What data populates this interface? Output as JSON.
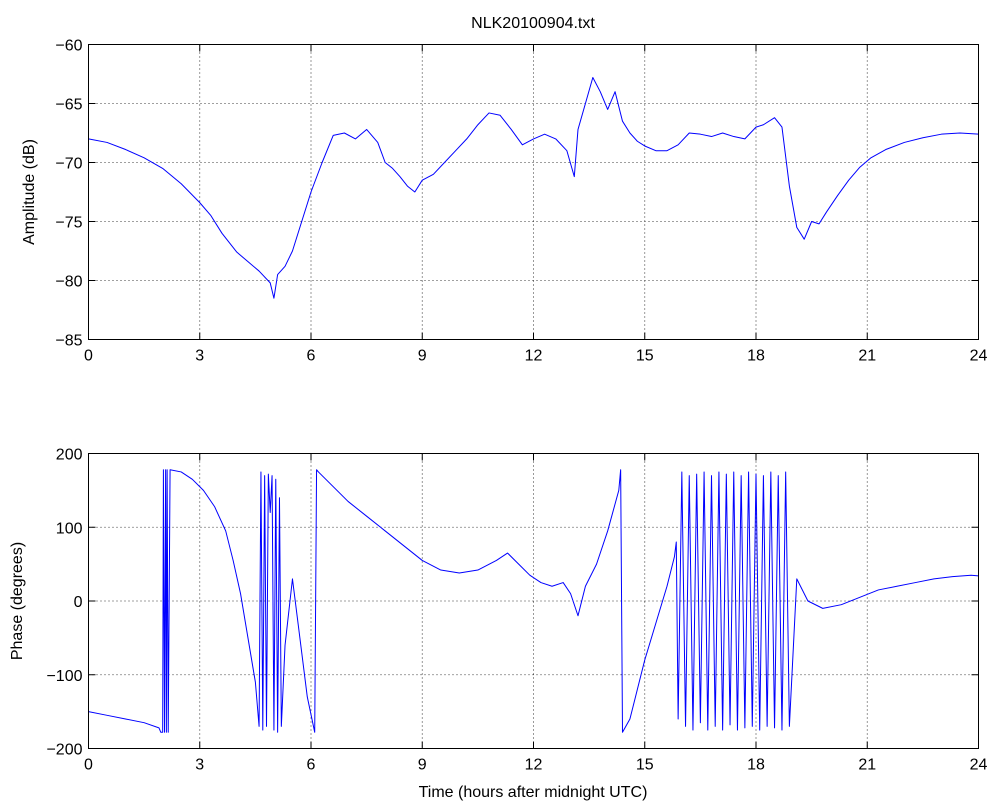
{
  "colors": {
    "trace": "#0000ff",
    "axes": "#000000",
    "background": "#ffffff"
  },
  "chart_data": [
    {
      "type": "line",
      "title": "NLK20100904.txt",
      "xlabel": "",
      "ylabel": "Amplitude (dB)",
      "xlim": [
        0,
        24
      ],
      "ylim": [
        -85,
        -60
      ],
      "xticks": [
        0,
        3,
        6,
        9,
        12,
        15,
        18,
        21,
        24
      ],
      "yticks": [
        -60,
        -65,
        -70,
        -75,
        -80,
        -85
      ],
      "xtick_labels": [
        "0",
        "3",
        "6",
        "9",
        "12",
        "15",
        "18",
        "21",
        "24"
      ],
      "ytick_labels": [
        "−60",
        "−65",
        "−70",
        "−75",
        "−80",
        "−85"
      ],
      "grid": true,
      "series": [
        {
          "x": [
            0,
            0.5,
            1.0,
            1.5,
            2.0,
            2.5,
            3.0,
            3.3,
            3.6,
            4.0,
            4.3,
            4.6,
            4.9,
            5.0,
            5.1,
            5.3,
            5.5,
            5.7,
            6.0,
            6.3,
            6.6,
            6.9,
            7.2,
            7.5,
            7.8,
            8.0,
            8.2,
            8.4,
            8.6,
            8.8,
            9.0,
            9.3,
            9.6,
            9.9,
            10.2,
            10.5,
            10.8,
            11.1,
            11.4,
            11.7,
            12.0,
            12.3,
            12.6,
            12.9,
            13.1,
            13.2,
            13.4,
            13.6,
            13.8,
            14.0,
            14.2,
            14.4,
            14.6,
            14.8,
            15.0,
            15.3,
            15.6,
            15.9,
            16.2,
            16.5,
            16.8,
            17.1,
            17.4,
            17.7,
            18.0,
            18.2,
            18.5,
            18.7,
            18.9,
            19.1,
            19.3,
            19.5,
            19.7,
            19.9,
            20.2,
            20.5,
            20.8,
            21.1,
            21.5,
            22.0,
            22.5,
            23.0,
            23.5,
            24.0
          ],
          "y": [
            -68,
            -68.3,
            -68.9,
            -69.6,
            -70.5,
            -71.8,
            -73.4,
            -74.5,
            -76.0,
            -77.6,
            -78.4,
            -79.2,
            -80.2,
            -81.5,
            -79.5,
            -78.8,
            -77.5,
            -75.5,
            -72.5,
            -70.0,
            -67.7,
            -67.5,
            -68.0,
            -67.2,
            -68.3,
            -70.0,
            -70.5,
            -71.2,
            -72.0,
            -72.5,
            -71.5,
            -71.0,
            -70.0,
            -69.0,
            -68.0,
            -66.8,
            -65.8,
            -66.0,
            -67.2,
            -68.5,
            -68.0,
            -67.6,
            -68.0,
            -69.0,
            -71.2,
            -67.2,
            -65.0,
            -62.8,
            -64.0,
            -65.5,
            -64.0,
            -66.5,
            -67.5,
            -68.2,
            -68.6,
            -69.0,
            -69.0,
            -68.5,
            -67.5,
            -67.6,
            -67.8,
            -67.5,
            -67.8,
            -68.0,
            -67.0,
            -66.8,
            -66.2,
            -67.0,
            -72.0,
            -75.5,
            -76.5,
            -75.0,
            -75.2,
            -74.2,
            -72.8,
            -71.5,
            -70.4,
            -69.6,
            -68.9,
            -68.3,
            -67.9,
            -67.6,
            -67.5,
            -67.6
          ]
        }
      ]
    },
    {
      "type": "line",
      "title": "",
      "xlabel": "Time (hours after midnight UTC)",
      "ylabel": "Phase (degrees)",
      "xlim": [
        0,
        24
      ],
      "ylim": [
        -200,
        200
      ],
      "xticks": [
        0,
        3,
        6,
        9,
        12,
        15,
        18,
        21,
        24
      ],
      "yticks": [
        200,
        100,
        0,
        -100,
        -200
      ],
      "xtick_labels": [
        "0",
        "3",
        "6",
        "9",
        "12",
        "15",
        "18",
        "21",
        "24"
      ],
      "ytick_labels": [
        "200",
        "100",
        "0",
        "−100",
        "−200"
      ],
      "grid": true,
      "series": [
        {
          "x": [
            0,
            0.5,
            1.0,
            1.5,
            1.9,
            1.95,
            2.0,
            2.02,
            2.05,
            2.08,
            2.1,
            2.12,
            2.15,
            2.2,
            2.5,
            2.8,
            3.1,
            3.4,
            3.7,
            3.9,
            4.1,
            4.3,
            4.5,
            4.6,
            4.65,
            4.7,
            4.75,
            4.8,
            4.85,
            4.9,
            4.95,
            5.0,
            5.05,
            5.1,
            5.15,
            5.2,
            5.3,
            5.5,
            5.7,
            5.9,
            6.1,
            6.15,
            6.2,
            6.6,
            7.0,
            7.5,
            8.0,
            8.5,
            9.0,
            9.5,
            10.0,
            10.5,
            11.0,
            11.3,
            11.6,
            11.9,
            12.2,
            12.5,
            12.8,
            13.0,
            13.2,
            13.4,
            13.7,
            14.0,
            14.3,
            14.35,
            14.4,
            14.6,
            14.8,
            15.0,
            15.3,
            15.6,
            15.8,
            15.85,
            15.9,
            16.0,
            16.1,
            16.2,
            16.3,
            16.4,
            16.5,
            16.6,
            16.7,
            16.8,
            16.9,
            17.0,
            17.1,
            17.2,
            17.3,
            17.4,
            17.5,
            17.6,
            17.7,
            17.8,
            17.9,
            18.0,
            18.1,
            18.2,
            18.3,
            18.4,
            18.5,
            18.6,
            18.7,
            18.8,
            18.9,
            19.1,
            19.4,
            19.8,
            20.3,
            20.8,
            21.3,
            21.8,
            22.3,
            22.8,
            23.3,
            23.8,
            24.0
          ],
          "y": [
            -150,
            -155,
            -160,
            -165,
            -172,
            -178,
            -178,
            178,
            -178,
            178,
            -178,
            178,
            -178,
            178,
            175,
            165,
            150,
            128,
            95,
            55,
            10,
            -50,
            -110,
            -170,
            175,
            -175,
            170,
            -170,
            172,
            120,
            170,
            -175,
            165,
            -178,
            140,
            -170,
            -60,
            30,
            -50,
            -130,
            -178,
            178,
            175,
            155,
            135,
            115,
            95,
            75,
            55,
            42,
            38,
            42,
            55,
            65,
            50,
            35,
            25,
            20,
            25,
            10,
            -20,
            20,
            50,
            95,
            150,
            178,
            -178,
            -160,
            -120,
            -80,
            -30,
            20,
            60,
            80,
            -160,
            175,
            -170,
            170,
            -175,
            172,
            -165,
            175,
            -175,
            170,
            -170,
            175,
            -175,
            172,
            -168,
            175,
            -175,
            170,
            -172,
            175,
            -170,
            172,
            -175,
            170,
            -170,
            175,
            -172,
            170,
            -175,
            175,
            -170,
            30,
            0,
            -10,
            -5,
            5,
            15,
            20,
            25,
            30,
            33,
            35,
            34
          ]
        }
      ]
    }
  ]
}
